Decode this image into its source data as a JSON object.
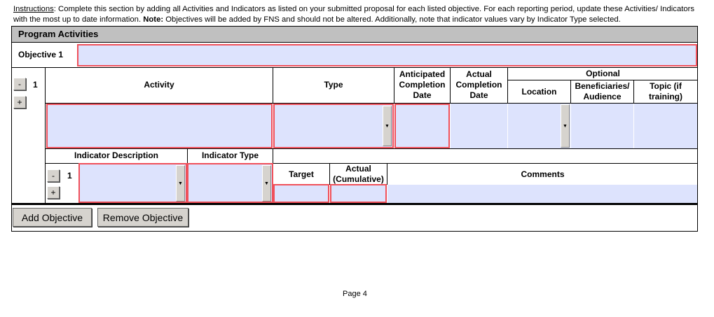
{
  "instructions": {
    "label": "Instructions",
    "text1": ": Complete this section by adding all Activities and Indicators as listed on your submitted proposal for each listed objective. For each reporting period, update these Activities/ Indicators with the most up to date information. ",
    "note_label": "Note:",
    "text2": " Objectives will be added by FNS and should not be altered. Additionally, note that indicator values vary by Indicator Type selected."
  },
  "section_title": "Program Activities",
  "objective": {
    "label": "Objective 1",
    "value": ""
  },
  "activity": {
    "number": "1",
    "remove": "-",
    "add": "+",
    "headers": {
      "activity": "Activity",
      "type": "Type",
      "anticipated": "Anticipated Completion Date",
      "actual": "Actual Completion Date",
      "optional": "Optional",
      "location": "Location",
      "beneficiaries": "Beneficiaries/ Audience",
      "topic": "Topic (if training)"
    },
    "values": {
      "activity": "",
      "type": "",
      "anticipated": "",
      "actual": "",
      "location": "",
      "beneficiaries": "",
      "topic": ""
    }
  },
  "indicator": {
    "number": "1",
    "remove": "-",
    "add": "+",
    "headers": {
      "description": "Indicator Description",
      "type": "Indicator Type",
      "target": "Target",
      "actual": "Actual (Cumulative)",
      "comments": "Comments"
    },
    "values": {
      "description": "",
      "type": "",
      "target": "",
      "actual": "",
      "comments": ""
    }
  },
  "buttons": {
    "add_objective": "Add Objective",
    "remove_objective": "Remove Objective"
  },
  "footer": {
    "page": "Page 4"
  },
  "colors": {
    "field": "#dde3fd",
    "required_border": "#f0505a",
    "header_bg": "#c0c0c0"
  }
}
